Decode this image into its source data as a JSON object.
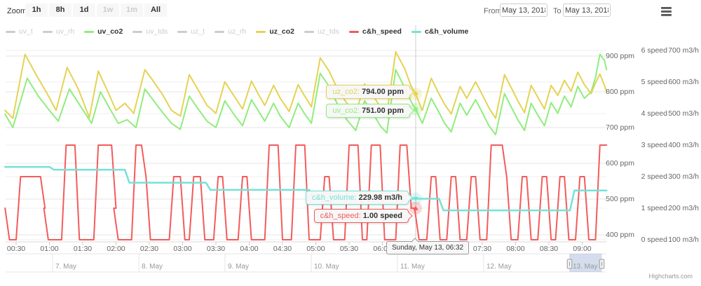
{
  "toolbar": {
    "zoom_label": "Zoom",
    "buttons": [
      {
        "label": "1h",
        "enabled": true
      },
      {
        "label": "8h",
        "enabled": true
      },
      {
        "label": "1d",
        "enabled": true
      },
      {
        "label": "1w",
        "enabled": false
      },
      {
        "label": "1m",
        "enabled": false
      },
      {
        "label": "All",
        "enabled": true
      }
    ],
    "from_label": "From",
    "from_value": "May 13, 2018",
    "to_label": "To",
    "to_value": "May 13, 2018"
  },
  "legend": {
    "items": [
      {
        "label": "uv_t",
        "color": "#cccccc",
        "active": false
      },
      {
        "label": "uv_rh",
        "color": "#cccccc",
        "active": false
      },
      {
        "label": "uv_co2",
        "color": "#90ed7d",
        "active": true
      },
      {
        "label": "uv_tds",
        "color": "#cccccc",
        "active": false
      },
      {
        "label": "uz_t",
        "color": "#cccccc",
        "active": false
      },
      {
        "label": "uz_rh",
        "color": "#cccccc",
        "active": false
      },
      {
        "label": "uz_co2",
        "color": "#e4d354",
        "active": true
      },
      {
        "label": "uz_tds",
        "color": "#cccccc",
        "active": false
      },
      {
        "label": "c&h_speed",
        "color": "#f45b5b",
        "active": true
      },
      {
        "label": "c&h_volume",
        "color": "#76e1d7",
        "active": true
      }
    ]
  },
  "tooltips": [
    {
      "label": "uz_co2:",
      "value": "794.00 ppm",
      "color": "#e4d354"
    },
    {
      "label": "uv_co2:",
      "value": "751.00 ppm",
      "color": "#90ed7d"
    },
    {
      "label": "c&h_volume:",
      "value": "229.98 m3/h",
      "color": "#76e1d7"
    },
    {
      "label": "c&h_speed:",
      "value": "1.00 speed",
      "color": "#f45b5b"
    }
  ],
  "crosshair_label": "Sunday, May 13, 06:32",
  "navigator": {
    "day_labels": [
      "7. May",
      "8. May",
      "9. May",
      "10. May",
      "11. May",
      "12. May",
      "13. May"
    ],
    "selected_label": "13. May"
  },
  "credit": "Highcharts.com",
  "chart_data": {
    "type": "line",
    "x_unit": "minutes since 2018-05-13 00:00",
    "x_range": [
      20,
      562
    ],
    "x_ticks": [
      {
        "m": 30,
        "label": "00:30"
      },
      {
        "m": 60,
        "label": "01:00"
      },
      {
        "m": 90,
        "label": "01:30"
      },
      {
        "m": 120,
        "label": "02:00"
      },
      {
        "m": 150,
        "label": "02:30"
      },
      {
        "m": 180,
        "label": "03:00"
      },
      {
        "m": 210,
        "label": "03:30"
      },
      {
        "m": 240,
        "label": "04:00"
      },
      {
        "m": 270,
        "label": "04:30"
      },
      {
        "m": 300,
        "label": "05:00"
      },
      {
        "m": 330,
        "label": "05:30"
      },
      {
        "m": 360,
        "label": "06:00"
      },
      {
        "m": 390,
        "label": "06:30"
      },
      {
        "m": 420,
        "label": "07:00"
      },
      {
        "m": 450,
        "label": "07:30"
      },
      {
        "m": 480,
        "label": "08:00"
      },
      {
        "m": 510,
        "label": "08:30"
      },
      {
        "m": 540,
        "label": "09:00"
      }
    ],
    "axes": {
      "ppm": {
        "values": [
          900,
          800,
          700,
          600,
          500,
          400
        ],
        "labels": [
          "900 ppm",
          "800 ppm",
          "700 ppm",
          "600 ppm",
          "500 ppm",
          "400 ppm"
        ]
      },
      "speed": {
        "values": [
          6,
          5,
          4,
          3,
          2,
          1,
          0
        ],
        "labels": [
          "6 speed",
          "5 speed",
          "4 speed",
          "3 speed",
          "2 speed",
          "1 speed",
          "0 speed"
        ]
      },
      "volume": {
        "values": [
          700,
          600,
          500,
          400,
          300,
          200,
          100
        ],
        "labels": [
          "700 m3/h",
          "600 m3/h",
          "500 m3/h",
          "400 m3/h",
          "300 m3/h",
          "200 m3/h",
          "100 m3/h"
        ]
      }
    },
    "series": [
      {
        "name": "uv_co2",
        "color": "#90ed7d",
        "axis": "ppm",
        "mode": "line",
        "width": 2,
        "data": [
          [
            20,
            738
          ],
          [
            27,
            700
          ],
          [
            40,
            838
          ],
          [
            50,
            788
          ],
          [
            60,
            748
          ],
          [
            68,
            718
          ],
          [
            78,
            808
          ],
          [
            88,
            760
          ],
          [
            98,
            712
          ],
          [
            106,
            800
          ],
          [
            114,
            755
          ],
          [
            122,
            712
          ],
          [
            130,
            722
          ],
          [
            138,
            700
          ],
          [
            146,
            808
          ],
          [
            154,
            775
          ],
          [
            162,
            742
          ],
          [
            170,
            712
          ],
          [
            178,
            695
          ],
          [
            186,
            788
          ],
          [
            194,
            752
          ],
          [
            202,
            718
          ],
          [
            210,
            700
          ],
          [
            218,
            775
          ],
          [
            226,
            738
          ],
          [
            234,
            705
          ],
          [
            242,
            778
          ],
          [
            248,
            748
          ],
          [
            254,
            718
          ],
          [
            262,
            768
          ],
          [
            268,
            732
          ],
          [
            276,
            700
          ],
          [
            284,
            768
          ],
          [
            290,
            738
          ],
          [
            296,
            712
          ],
          [
            304,
            852
          ],
          [
            312,
            815
          ],
          [
            320,
            762
          ],
          [
            328,
            722
          ],
          [
            336,
            692
          ],
          [
            344,
            775
          ],
          [
            352,
            738
          ],
          [
            358,
            705
          ],
          [
            364,
            685
          ],
          [
            372,
            862
          ],
          [
            380,
            812
          ],
          [
            386,
            772
          ],
          [
            390,
            751
          ],
          [
            396,
            712
          ],
          [
            404,
            782
          ],
          [
            410,
            748
          ],
          [
            416,
            712
          ],
          [
            422,
            688
          ],
          [
            430,
            768
          ],
          [
            436,
            735
          ],
          [
            444,
            778
          ],
          [
            450,
            742
          ],
          [
            456,
            705
          ],
          [
            462,
            680
          ],
          [
            470,
            795
          ],
          [
            476,
            758
          ],
          [
            482,
            722
          ],
          [
            488,
            692
          ],
          [
            494,
            768
          ],
          [
            500,
            735
          ],
          [
            506,
            705
          ],
          [
            512,
            770
          ],
          [
            518,
            740
          ],
          [
            524,
            788
          ],
          [
            530,
            758
          ],
          [
            536,
            815
          ],
          [
            542,
            782
          ],
          [
            548,
            800
          ],
          [
            552,
            840
          ],
          [
            556,
            905
          ],
          [
            560,
            888
          ],
          [
            562,
            862
          ]
        ]
      },
      {
        "name": "uz_co2",
        "color": "#e4d354",
        "axis": "ppm",
        "mode": "line",
        "width": 2,
        "data": [
          [
            20,
            748
          ],
          [
            27,
            726
          ],
          [
            38,
            905
          ],
          [
            48,
            848
          ],
          [
            58,
            795
          ],
          [
            66,
            748
          ],
          [
            76,
            868
          ],
          [
            86,
            808
          ],
          [
            96,
            728
          ],
          [
            104,
            858
          ],
          [
            112,
            805
          ],
          [
            120,
            748
          ],
          [
            128,
            768
          ],
          [
            136,
            740
          ],
          [
            146,
            862
          ],
          [
            154,
            828
          ],
          [
            162,
            792
          ],
          [
            170,
            748
          ],
          [
            178,
            732
          ],
          [
            186,
            848
          ],
          [
            194,
            805
          ],
          [
            202,
            762
          ],
          [
            210,
            740
          ],
          [
            218,
            828
          ],
          [
            226,
            790
          ],
          [
            234,
            752
          ],
          [
            242,
            830
          ],
          [
            248,
            795
          ],
          [
            254,
            762
          ],
          [
            262,
            818
          ],
          [
            268,
            782
          ],
          [
            276,
            745
          ],
          [
            284,
            820
          ],
          [
            290,
            788
          ],
          [
            296,
            758
          ],
          [
            304,
            895
          ],
          [
            312,
            858
          ],
          [
            320,
            805
          ],
          [
            328,
            768
          ],
          [
            336,
            740
          ],
          [
            344,
            822
          ],
          [
            352,
            788
          ],
          [
            358,
            758
          ],
          [
            364,
            738
          ],
          [
            372,
            912
          ],
          [
            380,
            865
          ],
          [
            386,
            815
          ],
          [
            390,
            794
          ],
          [
            396,
            748
          ],
          [
            404,
            838
          ],
          [
            410,
            800
          ],
          [
            416,
            765
          ],
          [
            422,
            738
          ],
          [
            430,
            815
          ],
          [
            436,
            782
          ],
          [
            444,
            828
          ],
          [
            450,
            792
          ],
          [
            456,
            755
          ],
          [
            462,
            726
          ],
          [
            470,
            848
          ],
          [
            476,
            812
          ],
          [
            482,
            775
          ],
          [
            488,
            742
          ],
          [
            494,
            818
          ],
          [
            500,
            785
          ],
          [
            506,
            752
          ],
          [
            512,
            818
          ],
          [
            518,
            790
          ],
          [
            524,
            832
          ],
          [
            530,
            802
          ],
          [
            536,
            855
          ],
          [
            542,
            820
          ],
          [
            548,
            795
          ],
          [
            552,
            825
          ],
          [
            556,
            850
          ],
          [
            560,
            818
          ],
          [
            562,
            800
          ]
        ]
      },
      {
        "name": "c&h_speed",
        "color": "#f45b5b",
        "axis": "speed",
        "mode": "step",
        "width": 2,
        "unit": "speed",
        "data": [
          [
            20,
            1
          ],
          [
            24,
            0
          ],
          [
            34,
            2
          ],
          [
            56,
            1
          ],
          [
            59,
            0
          ],
          [
            75,
            3
          ],
          [
            87,
            0
          ],
          [
            104,
            3
          ],
          [
            120,
            1
          ],
          [
            122,
            0
          ],
          [
            138,
            3
          ],
          [
            147,
            2
          ],
          [
            151,
            0
          ],
          [
            172,
            2
          ],
          [
            182,
            0
          ],
          [
            190,
            2
          ],
          [
            200,
            0
          ],
          [
            212,
            2
          ],
          [
            220,
            0
          ],
          [
            234,
            2
          ],
          [
            242,
            0
          ],
          [
            258,
            3
          ],
          [
            270,
            0
          ],
          [
            282,
            3
          ],
          [
            294,
            0
          ],
          [
            308,
            2
          ],
          [
            316,
            0
          ],
          [
            330,
            3
          ],
          [
            342,
            0
          ],
          [
            350,
            3
          ],
          [
            362,
            0
          ],
          [
            376,
            3
          ],
          [
            386,
            1
          ],
          [
            393,
            0
          ],
          [
            404,
            2
          ],
          [
            412,
            0
          ],
          [
            422,
            2
          ],
          [
            430,
            0
          ],
          [
            440,
            2
          ],
          [
            448,
            0
          ],
          [
            458,
            3
          ],
          [
            472,
            2
          ],
          [
            476,
            0
          ],
          [
            486,
            2
          ],
          [
            494,
            0
          ],
          [
            504,
            2
          ],
          [
            512,
            0
          ],
          [
            520,
            2
          ],
          [
            528,
            0
          ],
          [
            538,
            2
          ],
          [
            546,
            0
          ],
          [
            556,
            3
          ],
          [
            562,
            3
          ]
        ]
      },
      {
        "name": "c&h_volume",
        "color": "#76e1d7",
        "axis": "volume",
        "mode": "step",
        "width": 2.5,
        "unit": "m3/h",
        "data": [
          [
            20,
            331
          ],
          [
            64,
            322
          ],
          [
            132,
            281
          ],
          [
            205,
            258
          ],
          [
            298,
            230
          ],
          [
            415,
            193
          ],
          [
            533,
            256
          ],
          [
            562,
            256
          ]
        ]
      }
    ],
    "highlighted_time": 390,
    "markers": [
      {
        "series": "uz_co2",
        "axis": "ppm",
        "value": 794,
        "symbol": "diamond",
        "color": "#e4d354"
      },
      {
        "series": "uv_co2",
        "axis": "ppm",
        "value": 751,
        "symbol": "square",
        "color": "#90ed7d"
      },
      {
        "series": "c&h_volume",
        "axis": "volume",
        "value": 230,
        "symbol": "triangle-down",
        "color": "#76e1d7"
      },
      {
        "series": "c&h_speed",
        "axis": "speed",
        "value": 1,
        "symbol": "triangle",
        "color": "#f45b5b"
      }
    ]
  }
}
